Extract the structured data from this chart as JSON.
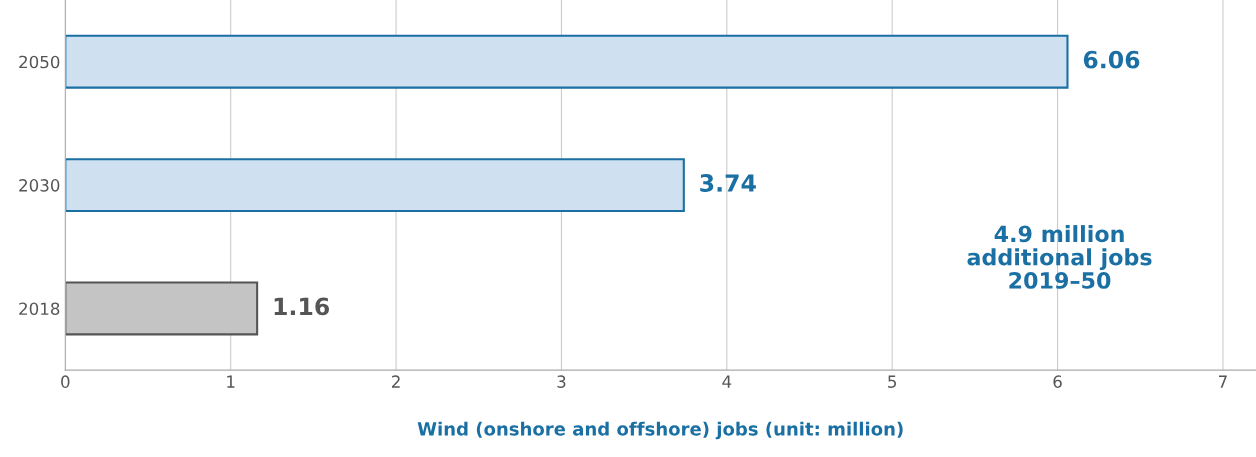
{
  "chart_data": {
    "type": "bar",
    "orientation": "horizontal",
    "categories": [
      "2050",
      "2030",
      "2018"
    ],
    "values": [
      6.06,
      3.74,
      1.16
    ],
    "colors": [
      "#cfe1f0",
      "#cfe1f0",
      "#c4c4c4"
    ],
    "xlim": [
      0,
      7.2
    ],
    "xticks": [
      0,
      1,
      2,
      3,
      4,
      5,
      6,
      7
    ],
    "grid": "x",
    "data_labels": true,
    "xlabel": "Wind (onshore and offshore) jobs (unit: million)",
    "annotations": [
      "4.9 million\nadditional jobs\n2019–50"
    ]
  }
}
